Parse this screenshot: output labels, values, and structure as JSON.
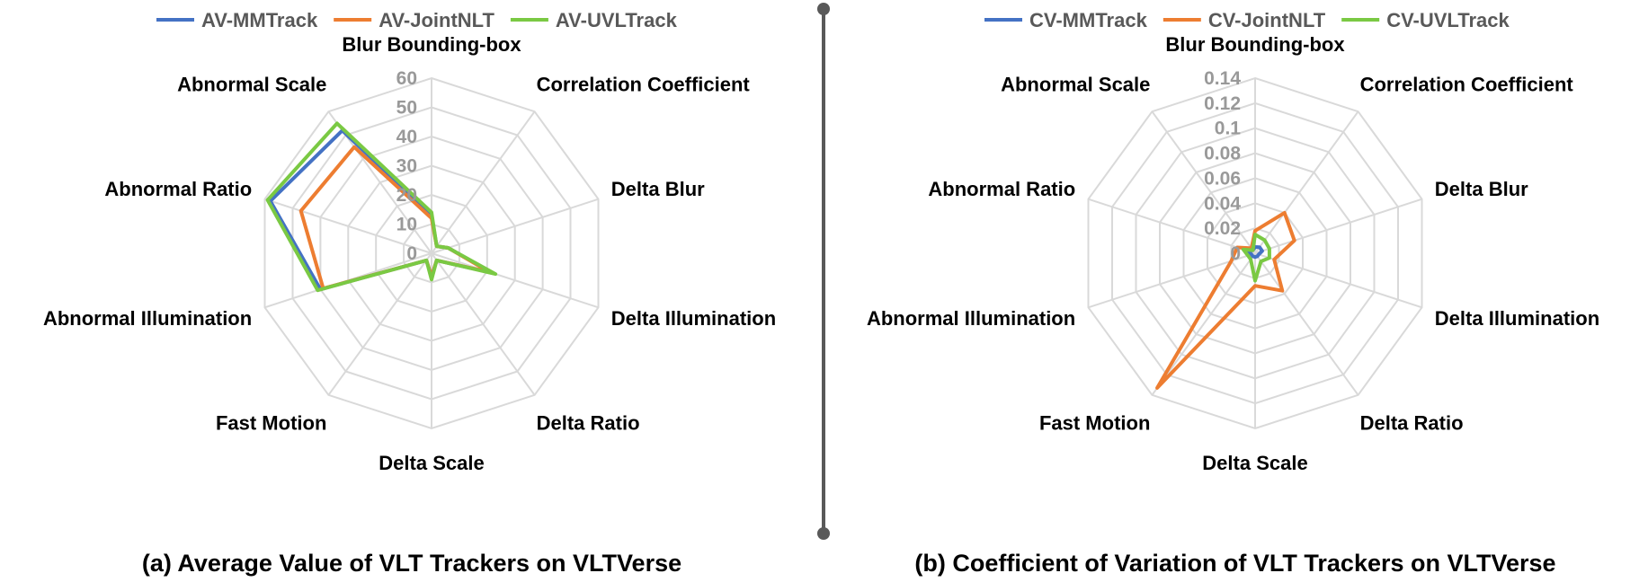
{
  "colors": {
    "blue": "#4472c4",
    "orange": "#ed7d31",
    "green": "#7ac943",
    "grid": "#d9d9d9",
    "divider": "#595959"
  },
  "chart_data": [
    {
      "type": "radar",
      "caption": "(a) Average Value of VLT Trackers on VLTVerse",
      "categories": [
        "Blur Bounding-box",
        "Correlation Coefficient",
        "Delta Blur",
        "Delta Illumination",
        "Delta Ratio",
        "Delta Scale",
        "Fast Motion",
        "Abnormal Illumination",
        "Abnormal Ratio",
        "Abnormal Scale"
      ],
      "rlim": [
        0,
        60
      ],
      "ticks": [
        "0",
        "10",
        "20",
        "30",
        "40",
        "50",
        "60"
      ],
      "legend_position": "top",
      "series": [
        {
          "name": "AV-MMTrack",
          "color": "#4472c4",
          "values": [
            13,
            3,
            6,
            22,
            3,
            8,
            3,
            40,
            58,
            52
          ]
        },
        {
          "name": "AV-JointNLT",
          "color": "#ed7d31",
          "values": [
            12,
            3,
            6,
            21,
            3,
            8,
            3,
            39,
            47,
            45
          ]
        },
        {
          "name": "AV-UVLTrack",
          "color": "#7ac943",
          "values": [
            14,
            3,
            6,
            23,
            3,
            9,
            3,
            41,
            59,
            55
          ]
        }
      ]
    },
    {
      "type": "radar",
      "caption": "(b) Coefficient of Variation of VLT Trackers on VLTVerse",
      "categories": [
        "Blur Bounding-box",
        "Correlation Coefficient",
        "Delta Blur",
        "Delta Illumination",
        "Delta Ratio",
        "Delta Scale",
        "Fast Motion",
        "Abnormal Illumination",
        "Abnormal Ratio",
        "Abnormal Scale"
      ],
      "rlim": [
        0,
        0.14
      ],
      "ticks": [
        "0",
        "0.02",
        "0.04",
        "0.06",
        "0.08",
        "0.1",
        "0.12",
        "0.14"
      ],
      "legend_position": "top",
      "series": [
        {
          "name": "CV-MMTrack",
          "color": "#4472c4",
          "values": [
            0.005,
            0.006,
            0.006,
            0.003,
            0.003,
            0.003,
            0.003,
            0.003,
            0.006,
            0.003
          ]
        },
        {
          "name": "CV-JointNLT",
          "color": "#ed7d31",
          "values": [
            0.018,
            0.04,
            0.033,
            0.016,
            0.037,
            0.026,
            0.133,
            0.02,
            0.015,
            0.005
          ]
        },
        {
          "name": "CV-UVLTrack",
          "color": "#7ac943",
          "values": [
            0.015,
            0.013,
            0.012,
            0.012,
            0.008,
            0.022,
            0.006,
            0.006,
            0.01,
            0.003
          ]
        }
      ]
    }
  ]
}
